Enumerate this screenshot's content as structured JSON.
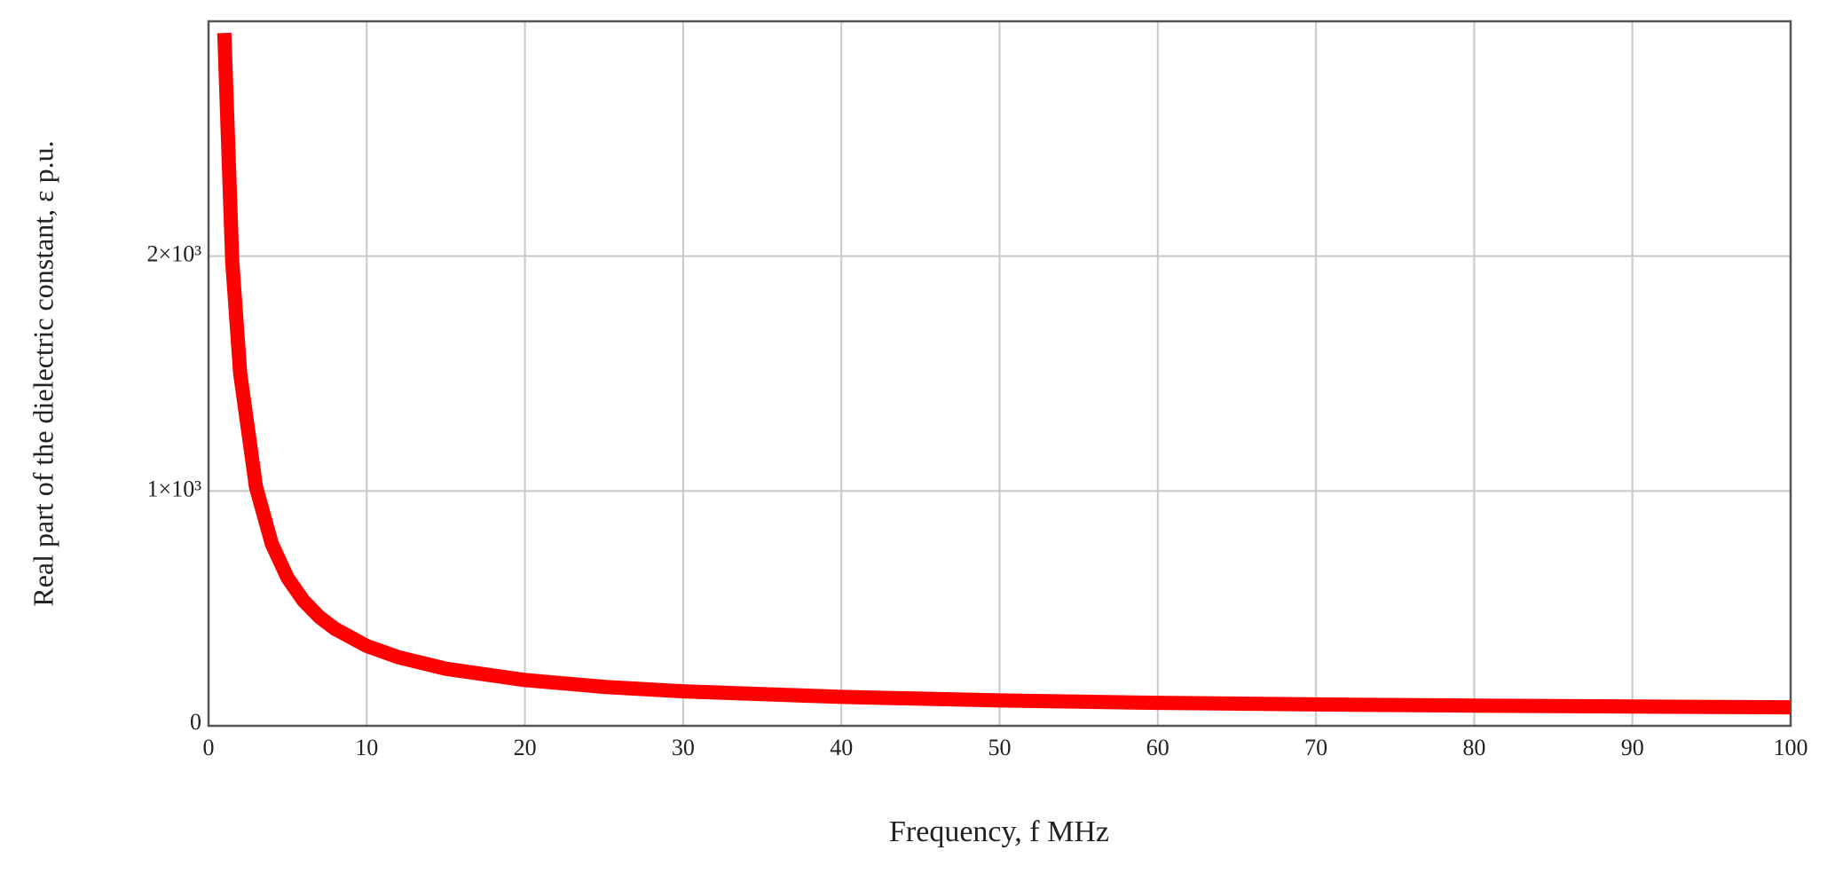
{
  "chart_data": {
    "type": "line",
    "xlabel": "Frequency, f MHz",
    "ylabel": "Real part of the dielectric constant, ε p.u.",
    "x": [
      1,
      1.5,
      2,
      3,
      4,
      5,
      6,
      7,
      8,
      10,
      12,
      15,
      20,
      25,
      30,
      40,
      50,
      60,
      70,
      80,
      90,
      100
    ],
    "values": [
      2950,
      1980,
      1500,
      1017,
      775,
      630,
      533,
      464,
      413,
      340,
      292,
      243,
      195,
      166,
      147,
      123,
      108,
      98,
      91,
      86,
      82,
      79
    ],
    "color": "#ff0000",
    "xlim": [
      0,
      100
    ],
    "xticks": [
      0,
      10,
      20,
      30,
      40,
      50,
      60,
      70,
      80,
      90,
      100
    ],
    "ylim": [
      0,
      3000
    ],
    "yticks": [
      0,
      {
        "value": 1000,
        "label": "1×10³"
      },
      {
        "value": 2000,
        "label": "2×10³"
      }
    ],
    "grid": true
  }
}
